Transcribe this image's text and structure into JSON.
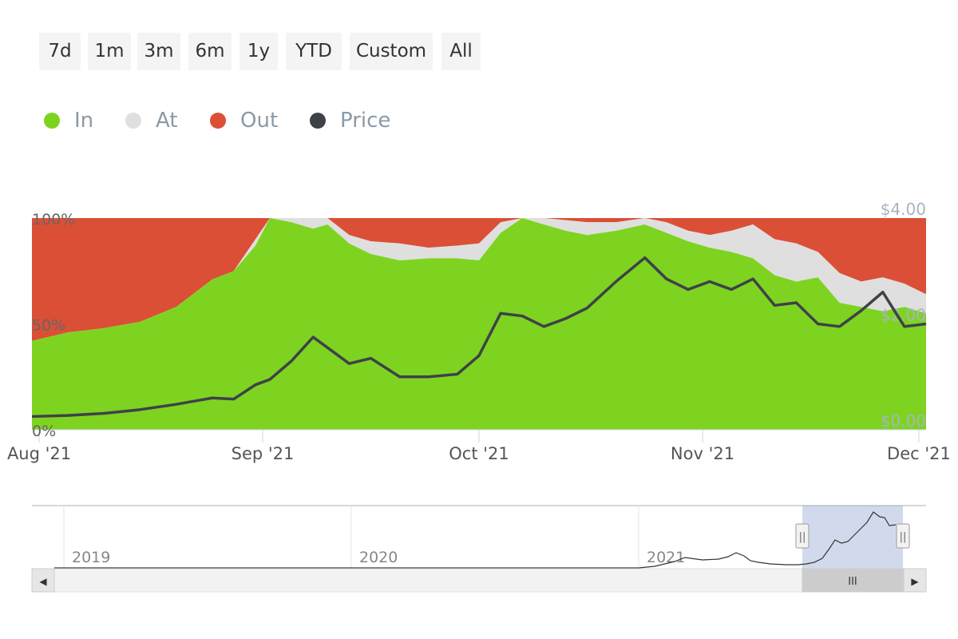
{
  "range_buttons": [
    "7d",
    "1m",
    "3m",
    "6m",
    "1y",
    "YTD",
    "Custom",
    "All"
  ],
  "legend": [
    {
      "label": "In",
      "color": "#7ed321"
    },
    {
      "label": "At",
      "color": "#dfdfdf"
    },
    {
      "label": "Out",
      "color": "#db4f37"
    },
    {
      "label": "Price",
      "color": "#3e4247"
    }
  ],
  "chart_data": {
    "type": "area",
    "stacked_percent": true,
    "x_unit": "date",
    "x_start": "2021-07-31",
    "x_end": "2021-12-02",
    "x_ticks": [
      {
        "date": "2021-08-01",
        "label": "Aug '21"
      },
      {
        "date": "2021-09-01",
        "label": "Sep '21"
      },
      {
        "date": "2021-10-01",
        "label": "Oct '21"
      },
      {
        "date": "2021-11-01",
        "label": "Nov '21"
      },
      {
        "date": "2021-12-01",
        "label": "Dec '21"
      }
    ],
    "y_left": {
      "ticks": [
        "0%",
        "50%",
        "100%"
      ],
      "range": [
        0,
        100
      ]
    },
    "y_right": {
      "ticks": [
        "$0.00",
        "$2.00",
        "$4.00"
      ],
      "range": [
        0,
        4
      ]
    },
    "dates": [
      "2021-07-31",
      "2021-08-05",
      "2021-08-10",
      "2021-08-15",
      "2021-08-20",
      "2021-08-25",
      "2021-08-28",
      "2021-08-31",
      "2021-09-02",
      "2021-09-05",
      "2021-09-08",
      "2021-09-10",
      "2021-09-13",
      "2021-09-16",
      "2021-09-20",
      "2021-09-24",
      "2021-09-28",
      "2021-10-01",
      "2021-10-04",
      "2021-10-07",
      "2021-10-10",
      "2021-10-13",
      "2021-10-16",
      "2021-10-20",
      "2021-10-24",
      "2021-10-27",
      "2021-10-30",
      "2021-11-02",
      "2021-11-05",
      "2021-11-08",
      "2021-11-11",
      "2021-11-14",
      "2021-11-17",
      "2021-11-20",
      "2021-11-23",
      "2021-11-26",
      "2021-11-29",
      "2021-12-02"
    ],
    "series": [
      {
        "name": "In",
        "values": [
          42,
          46,
          48,
          51,
          58,
          71,
          75,
          87,
          100,
          98,
          95,
          97,
          88,
          83,
          80,
          81,
          81,
          80,
          93,
          100,
          97,
          94,
          92,
          94,
          97,
          93,
          89,
          86,
          84,
          81,
          73,
          70,
          72,
          60,
          58,
          56,
          58,
          55
        ]
      },
      {
        "name": "At",
        "values": [
          0,
          0,
          0,
          0,
          0,
          0,
          0,
          3,
          0,
          2,
          5,
          3,
          4,
          6,
          8,
          5,
          6,
          8,
          5,
          0,
          3,
          5,
          6,
          4,
          3,
          5,
          5,
          6,
          10,
          16,
          17,
          18,
          12,
          14,
          12,
          16,
          11,
          9
        ]
      },
      {
        "name": "Out",
        "values": [
          58,
          54,
          52,
          49,
          42,
          29,
          25,
          10,
          0,
          0,
          0,
          0,
          8,
          11,
          12,
          14,
          13,
          12,
          2,
          0,
          0,
          1,
          2,
          2,
          0,
          2,
          6,
          8,
          6,
          3,
          10,
          12,
          16,
          26,
          30,
          28,
          31,
          36
        ]
      },
      {
        "name": "Price",
        "values": [
          0.25,
          0.27,
          0.31,
          0.38,
          0.48,
          0.6,
          0.58,
          0.85,
          0.95,
          1.3,
          1.75,
          1.55,
          1.25,
          1.35,
          1.0,
          1.0,
          1.05,
          1.4,
          2.2,
          2.15,
          1.95,
          2.1,
          2.3,
          2.8,
          3.25,
          2.85,
          2.65,
          2.8,
          2.65,
          2.85,
          2.35,
          2.4,
          2.0,
          1.95,
          2.25,
          2.6,
          1.95,
          2.0
        ]
      }
    ]
  },
  "navigator": {
    "year_labels": [
      "2019",
      "2020",
      "2021"
    ],
    "scroll_grip": "III",
    "left_arrow": "◀",
    "right_arrow": "▶",
    "handle_grip": "||"
  }
}
